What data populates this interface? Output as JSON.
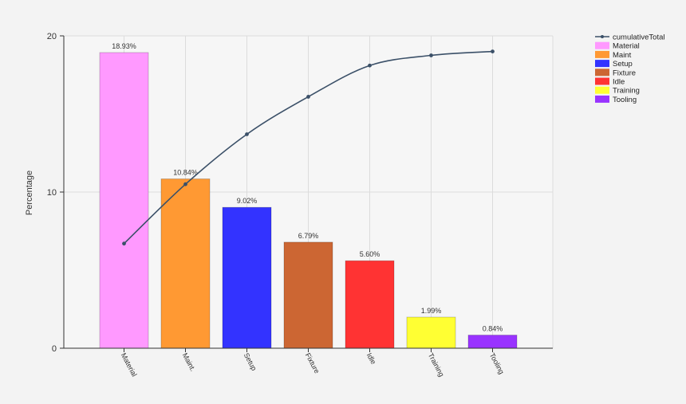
{
  "chart_data": {
    "type": "bar",
    "ylabel": "Percentage",
    "ylim": [
      0,
      20
    ],
    "yticks": [
      0,
      10,
      20
    ],
    "grid": true,
    "legend_position": "top-right",
    "categories": [
      "Material",
      "Maint.",
      "Setup",
      "Fixture",
      "Idle",
      "Training",
      "Tooling"
    ],
    "values": [
      18.93,
      10.84,
      9.02,
      6.79,
      5.6,
      1.99,
      0.84
    ],
    "data_labels": [
      "18.93%",
      "10.84%",
      "9.02%",
      "6.79%",
      "5.60%",
      "1.99%",
      "0.84%"
    ],
    "colors": [
      "#ff99ff",
      "#ff9933",
      "#3333ff",
      "#cc6633",
      "#ff3333",
      "#ffff33",
      "#9933ff"
    ],
    "line_series": {
      "name": "cumulativeTotal",
      "color": "#3b5068",
      "values": [
        6.7,
        10.5,
        13.7,
        16.1,
        18.1,
        18.75,
        19.0
      ]
    },
    "legend": [
      "cumulativeTotal",
      "Material",
      "Maint",
      "Setup",
      "Fixture",
      "Idle",
      "Training",
      "Tooling"
    ]
  }
}
